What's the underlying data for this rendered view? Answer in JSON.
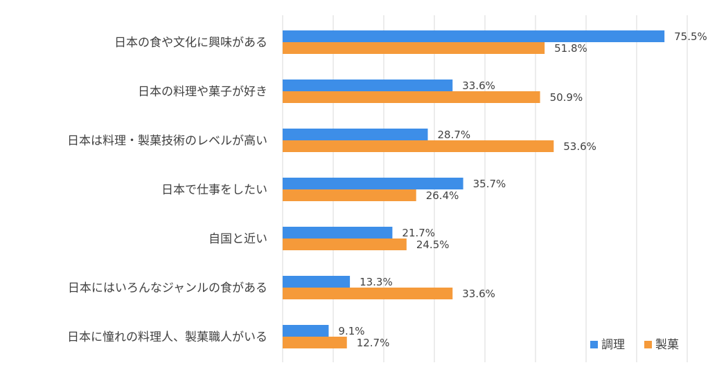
{
  "chart_data": {
    "type": "bar",
    "orientation": "horizontal",
    "categories": [
      "日本の食や文化に興味がある",
      "日本の料理や菓子が好き",
      "日本は料理・製菓技術のレベルが高い",
      "日本で仕事をしたい",
      "自国と近い",
      "日本にはいろんなジャンルの食がある",
      "日本に憧れの料理人、製菓職人がいる"
    ],
    "series": [
      {
        "name": "調理",
        "color": "#3d8ee8",
        "values": [
          75.5,
          33.6,
          28.7,
          35.7,
          21.7,
          13.3,
          9.1
        ],
        "labels": [
          "75.5%",
          "33.6%",
          "28.7%",
          "35.7%",
          "21.7%",
          "13.3%",
          "9.1%"
        ]
      },
      {
        "name": "製菓",
        "color": "#f59a3a",
        "values": [
          51.8,
          50.9,
          53.6,
          26.4,
          24.5,
          33.6,
          12.7
        ],
        "labels": [
          "51.8%",
          "50.9%",
          "53.6%",
          "26.4%",
          "24.5%",
          "33.6%",
          "12.7%"
        ]
      }
    ],
    "xlim": [
      0,
      80
    ],
    "grid": true,
    "legend_position": "bottom-right"
  }
}
